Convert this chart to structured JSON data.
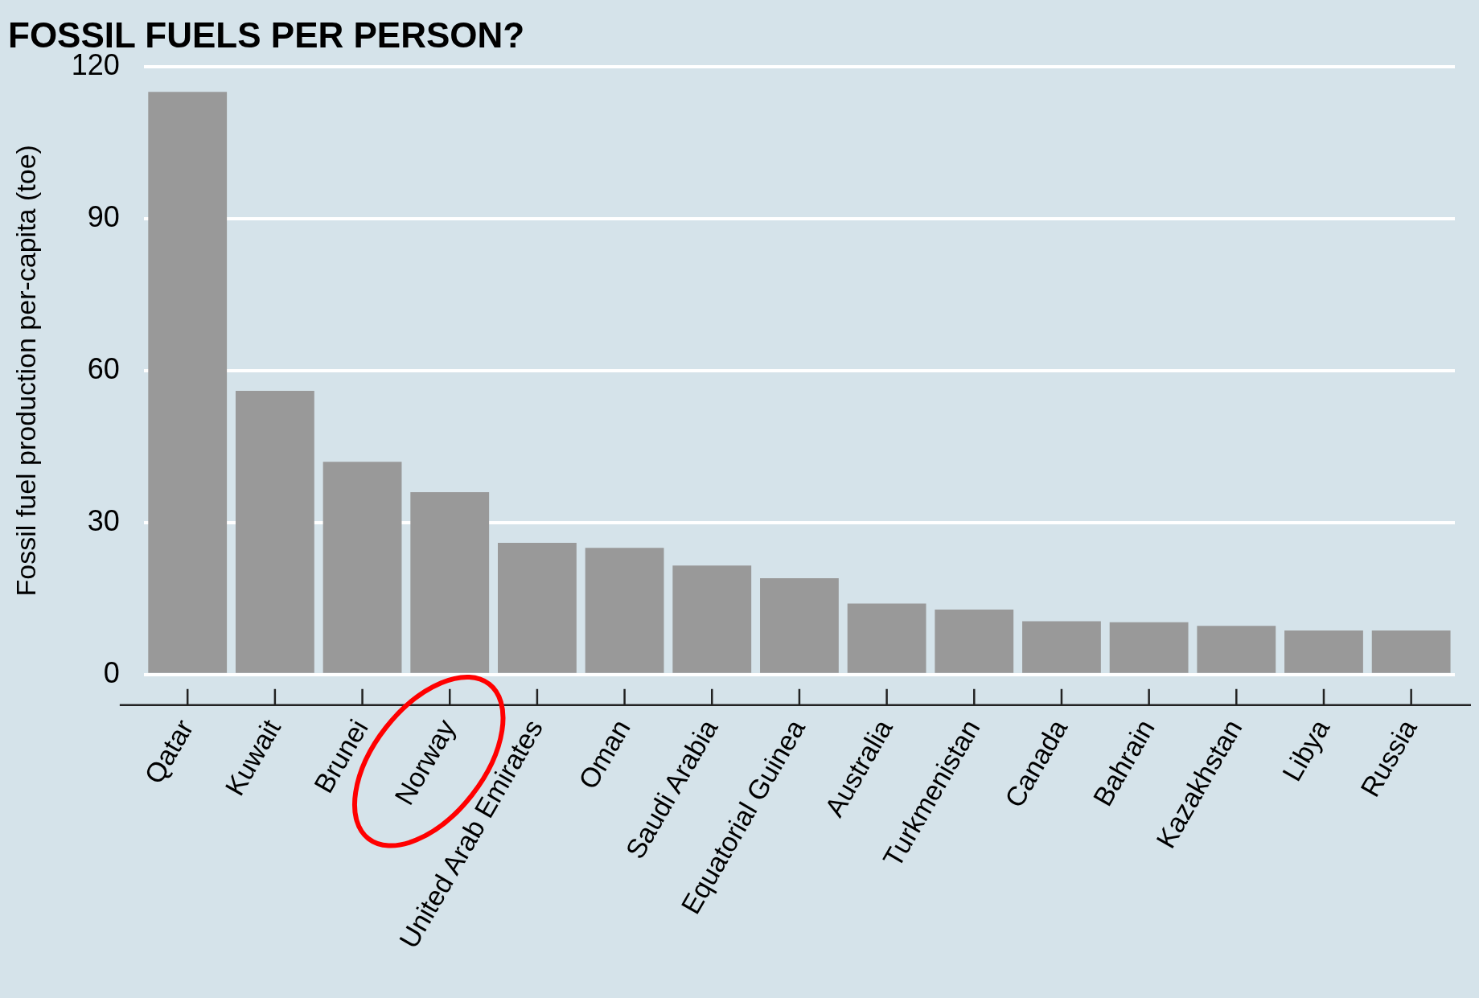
{
  "chart_data": {
    "type": "bar",
    "title": "FOSSIL FUELS PER PERSON?",
    "ylabel": "Fossil fuel production per-capita (toe)",
    "categories": [
      "Qatar",
      "Kuwait",
      "Brunei",
      "Norway",
      "United Arab Emirates",
      "Oman",
      "Saudi Arabia",
      "Equatorial Guinea",
      "Australia",
      "Turkmenistan",
      "Canada",
      "Bahrain",
      "Kazakhstan",
      "Libya",
      "Russia"
    ],
    "values": [
      115,
      56,
      42,
      36,
      26,
      25,
      21.5,
      19,
      14,
      12.8,
      10.5,
      10.3,
      9.6,
      8.7,
      8.7
    ],
    "color": "#999999",
    "ylim": [
      0,
      120
    ],
    "yticks": [
      0,
      30,
      60,
      90,
      120
    ],
    "grid": "y"
  }
}
